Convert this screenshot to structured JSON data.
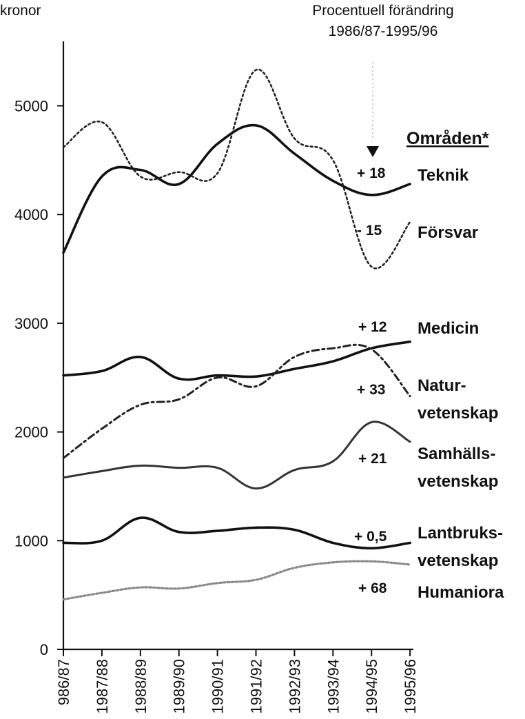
{
  "header": {
    "line1": "Procentuell förändring",
    "line2": "1986/87-1995/96"
  },
  "legend_heading": "Områden*",
  "chart_data": {
    "type": "line",
    "ylabel": "kronor",
    "xlabel": "",
    "ylim": [
      0,
      5600
    ],
    "yticks": [
      0,
      1000,
      2000,
      3000,
      4000,
      5000
    ],
    "categories": [
      "986/87",
      "1987/88",
      "1988/89",
      "1989/90",
      "1990/91",
      "1991/92",
      "1992/93",
      "1993/94",
      "1994/95",
      "1995/96"
    ],
    "grid": false,
    "legend": "right",
    "series": [
      {
        "name": "Teknik",
        "change": "+ 18",
        "style": "solid",
        "color": "#111111",
        "values": [
          3650,
          4350,
          4410,
          4280,
          4650,
          4820,
          4560,
          4310,
          4180,
          4280
        ]
      },
      {
        "name": "Försvar",
        "change": "- 15",
        "style": "dotted",
        "color": "#222222",
        "values": [
          4620,
          4850,
          4350,
          4390,
          4380,
          5330,
          4700,
          4500,
          3520,
          3930
        ]
      },
      {
        "name": "Medicin",
        "change": "+ 12",
        "style": "solid",
        "color": "#111111",
        "values": [
          2520,
          2560,
          2690,
          2490,
          2520,
          2510,
          2580,
          2650,
          2770,
          2830
        ]
      },
      {
        "name": "Naturvetenskap",
        "name_lines": [
          "Natur-",
          "vetenskap"
        ],
        "change": "+ 33",
        "style": "dashdot",
        "color": "#222222",
        "values": [
          1760,
          2030,
          2250,
          2300,
          2500,
          2420,
          2690,
          2770,
          2760,
          2330
        ]
      },
      {
        "name": "Samhällsvetenskap",
        "name_lines": [
          "Samhälls-",
          "vetenskap"
        ],
        "change": "+ 21",
        "style": "solid-thin",
        "color": "#333333",
        "values": [
          1580,
          1640,
          1690,
          1670,
          1670,
          1480,
          1650,
          1730,
          2090,
          1910
        ]
      },
      {
        "name": "Lantbruksvetenskap",
        "name_lines": [
          "Lantbruks-",
          "vetenskap"
        ],
        "change": "+ 0,5",
        "style": "solid",
        "color": "#111111",
        "values": [
          980,
          1000,
          1210,
          1080,
          1090,
          1120,
          1100,
          980,
          930,
          980
        ]
      },
      {
        "name": "Humaniora",
        "change": "+ 68",
        "style": "grey-dotted",
        "color": "#8a8a8a",
        "values": [
          460,
          520,
          570,
          560,
          610,
          640,
          750,
          800,
          810,
          780
        ]
      }
    ]
  }
}
